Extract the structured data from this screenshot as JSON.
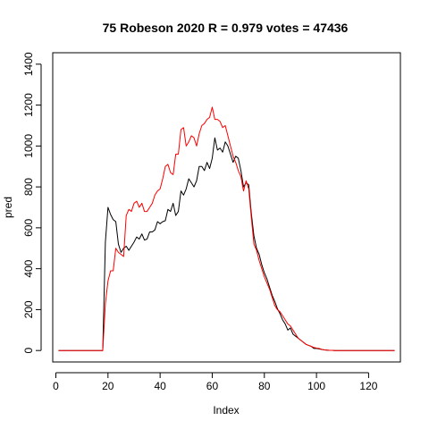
{
  "chart_data": {
    "type": "line",
    "title": "75 Robeson 2020 R = 0.979 votes = 47436",
    "xlabel": "Index",
    "ylabel": "pred",
    "xlim": [
      -1.2,
      132.2
    ],
    "ylim": [
      -56,
      1456
    ],
    "x_ticks": [
      0,
      20,
      40,
      60,
      80,
      100,
      120
    ],
    "y_ticks": [
      0,
      200,
      400,
      600,
      800,
      1000,
      1200,
      1400
    ],
    "x": [
      1,
      2,
      3,
      4,
      5,
      6,
      7,
      8,
      9,
      10,
      11,
      12,
      13,
      14,
      15,
      16,
      17,
      18,
      19,
      20,
      21,
      22,
      23,
      24,
      25,
      26,
      27,
      28,
      29,
      30,
      31,
      32,
      33,
      34,
      35,
      36,
      37,
      38,
      39,
      40,
      41,
      42,
      43,
      44,
      45,
      46,
      47,
      48,
      49,
      50,
      51,
      52,
      53,
      54,
      55,
      56,
      57,
      58,
      59,
      60,
      61,
      62,
      63,
      64,
      65,
      66,
      67,
      68,
      69,
      70,
      71,
      72,
      73,
      74,
      75,
      76,
      77,
      78,
      79,
      80,
      81,
      82,
      83,
      84,
      85,
      86,
      87,
      88,
      89,
      90,
      91,
      92,
      93,
      94,
      95,
      96,
      97,
      98,
      99,
      100,
      101,
      102,
      103,
      104,
      105,
      106,
      107,
      108,
      109,
      110,
      111,
      112,
      113,
      114,
      115,
      116,
      117,
      118,
      119,
      120,
      121,
      122,
      123,
      124,
      125,
      126,
      127,
      128,
      129,
      130
    ],
    "series": [
      {
        "color": "#000000",
        "values": [
          0,
          0,
          0,
          0,
          0,
          0,
          0,
          0,
          0,
          0,
          0,
          0,
          0,
          0,
          0,
          0,
          0,
          0,
          530,
          700,
          665,
          640,
          630,
          520,
          480,
          500,
          510,
          490,
          510,
          530,
          555,
          545,
          570,
          540,
          545,
          580,
          580,
          590,
          630,
          620,
          630,
          635,
          690,
          680,
          720,
          660,
          680,
          780,
          760,
          790,
          840,
          820,
          800,
          830,
          900,
          900,
          880,
          920,
          890,
          940,
          1040,
          980,
          990,
          970,
          1020,
          1000,
          960,
          920,
          950,
          940,
          880,
          800,
          820,
          810,
          670,
          560,
          500,
          470,
          420,
          380,
          350,
          310,
          270,
          240,
          205,
          180,
          150,
          130,
          100,
          110,
          80,
          70,
          60,
          50,
          40,
          30,
          25,
          20,
          10,
          10,
          8,
          5,
          3,
          2,
          1,
          1,
          0,
          0,
          0,
          0,
          0,
          0,
          0,
          0,
          0,
          0,
          0,
          0,
          0,
          0,
          0,
          0,
          0,
          0,
          0,
          0,
          0,
          0,
          0,
          0
        ]
      },
      {
        "color": "#ff0000",
        "values": [
          0,
          0,
          0,
          0,
          0,
          0,
          0,
          0,
          0,
          0,
          0,
          0,
          0,
          0,
          0,
          0,
          0,
          0,
          230,
          340,
          390,
          390,
          500,
          480,
          470,
          460,
          660,
          690,
          680,
          720,
          730,
          700,
          720,
          680,
          680,
          700,
          720,
          760,
          780,
          790,
          840,
          900,
          910,
          870,
          860,
          960,
          960,
          1080,
          1090,
          1000,
          1020,
          1050,
          1040,
          1000,
          1060,
          1100,
          1110,
          1130,
          1140,
          1190,
          1130,
          1130,
          1120,
          1090,
          1100,
          1050,
          1000,
          950,
          920,
          880,
          850,
          780,
          830,
          790,
          650,
          520,
          490,
          440,
          400,
          360,
          330,
          300,
          260,
          220,
          200,
          190,
          170,
          150,
          130,
          120,
          100,
          80,
          60,
          50,
          40,
          30,
          25,
          20,
          15,
          12,
          10,
          6,
          3,
          2,
          1,
          1,
          0,
          0,
          0,
          0,
          0,
          0,
          0,
          0,
          0,
          0,
          0,
          0,
          0,
          0,
          0,
          0,
          0,
          0,
          0,
          0,
          0,
          0,
          0,
          0
        ]
      }
    ]
  }
}
